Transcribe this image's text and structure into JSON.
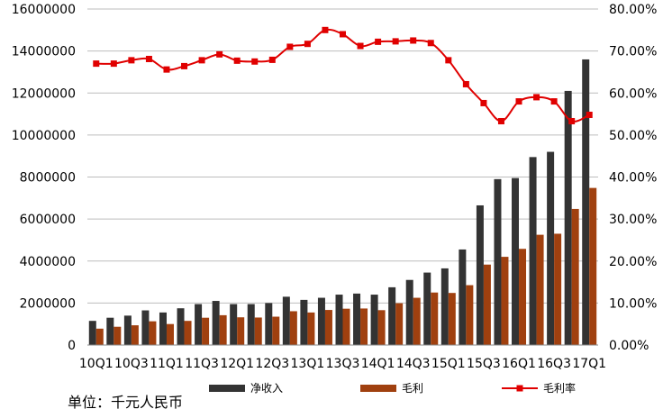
{
  "chart_data": {
    "type": "bar",
    "categories": [
      "10Q1",
      "10Q2",
      "10Q3",
      "10Q4",
      "11Q1",
      "11Q2",
      "11Q3",
      "11Q4",
      "12Q1",
      "12Q2",
      "12Q3",
      "12Q4",
      "13Q1",
      "13Q2",
      "13Q3",
      "13Q4",
      "14Q1",
      "14Q2",
      "14Q3",
      "14Q4",
      "15Q1",
      "15Q2",
      "15Q3",
      "15Q4",
      "16Q1",
      "16Q2",
      "16Q3",
      "16Q4",
      "17Q1"
    ],
    "x_tick_labels": [
      "10Q1",
      "10Q3",
      "11Q1",
      "11Q3",
      "12Q1",
      "12Q3",
      "13Q1",
      "13Q3",
      "14Q1",
      "14Q3",
      "15Q1",
      "15Q3",
      "16Q1",
      "16Q3",
      "17Q1"
    ],
    "series": [
      {
        "name": "净收入",
        "kind": "bar",
        "axis": "left",
        "color": "#333333",
        "values": [
          1150000,
          1300000,
          1400000,
          1650000,
          1550000,
          1750000,
          1950000,
          2100000,
          1950000,
          1950000,
          2000000,
          2300000,
          2150000,
          2250000,
          2400000,
          2450000,
          2400000,
          2750000,
          3100000,
          3450000,
          3650000,
          4550000,
          6650000,
          7900000,
          7950000,
          8950000,
          9200000,
          12100000,
          13600000
        ]
      },
      {
        "name": "毛利",
        "kind": "bar",
        "axis": "left",
        "color": "#a0400f",
        "values": [
          780000,
          870000,
          940000,
          1130000,
          1000000,
          1150000,
          1300000,
          1420000,
          1320000,
          1310000,
          1350000,
          1610000,
          1550000,
          1670000,
          1730000,
          1740000,
          1660000,
          1990000,
          2250000,
          2500000,
          2480000,
          2850000,
          3830000,
          4200000,
          4580000,
          5250000,
          5300000,
          6480000,
          7480000
        ]
      },
      {
        "name": "毛利率",
        "kind": "line",
        "axis": "right",
        "color": "#e00000",
        "values": [
          0.67,
          0.67,
          0.678,
          0.681,
          0.656,
          0.664,
          0.678,
          0.692,
          0.677,
          0.675,
          0.679,
          0.71,
          0.717,
          0.75,
          0.74,
          0.712,
          0.722,
          0.723,
          0.725,
          0.719,
          0.678,
          0.621,
          0.576,
          0.533,
          0.58,
          0.59,
          0.58,
          0.533,
          0.548
        ]
      }
    ],
    "y_left": {
      "ylim": [
        0,
        16000000
      ],
      "ticks": [
        "0",
        "2000000",
        "4000000",
        "6000000",
        "8000000",
        "10000000",
        "12000000",
        "14000000",
        "16000000"
      ]
    },
    "y_right": {
      "ylim": [
        0,
        0.8
      ],
      "ticks": [
        "0.00%",
        "10.00%",
        "20.00%",
        "30.00%",
        "40.00%",
        "50.00%",
        "60.00%",
        "70.00%",
        "80.00%"
      ]
    },
    "grid": true,
    "legend_position": "bottom",
    "unit_note": "单位：千元人民币"
  }
}
